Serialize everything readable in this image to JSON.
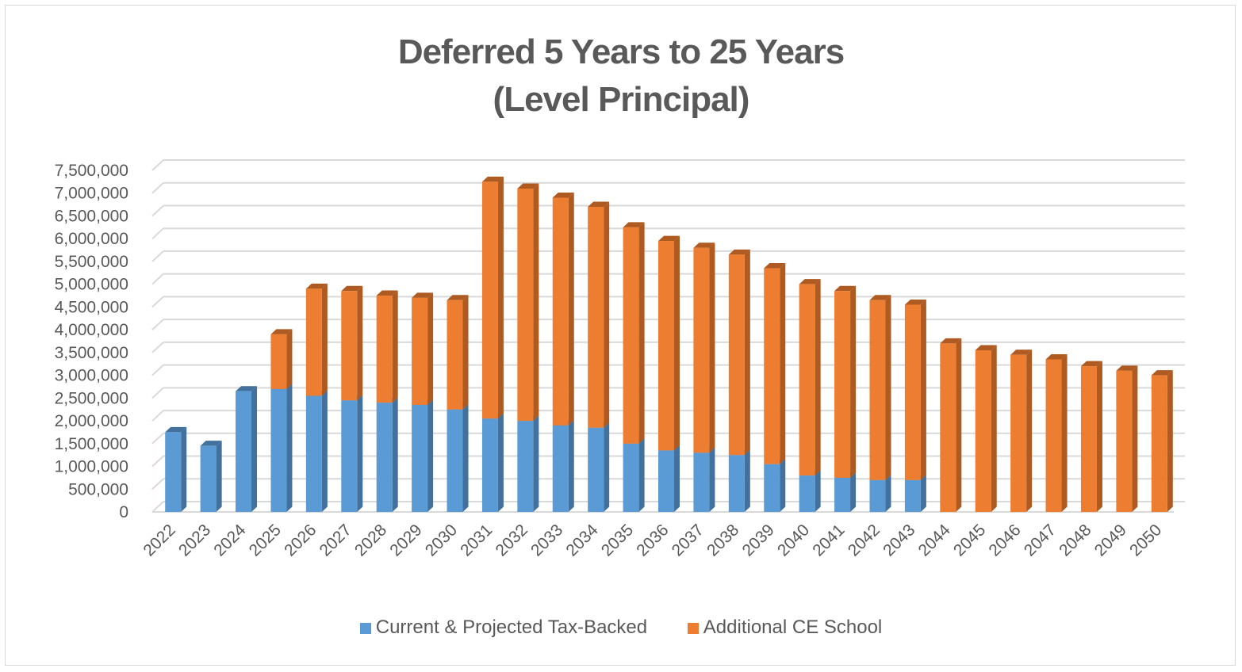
{
  "chart_data": {
    "type": "bar",
    "stacked": true,
    "title_line1": "Deferred 5 Years to 25 Years",
    "title_line2": "(Level Principal)",
    "xlabel": "",
    "ylabel": "",
    "ylim": [
      0,
      7500000
    ],
    "ytick_step": 500000,
    "ytick_labels": [
      "0",
      "500,000",
      "1,000,000",
      "1,500,000",
      "2,000,000",
      "2,500,000",
      "3,000,000",
      "3,500,000",
      "4,000,000",
      "4,500,000",
      "5,000,000",
      "5,500,000",
      "6,000,000",
      "6,500,000",
      "7,000,000",
      "7,500,000"
    ],
    "grid": true,
    "legend_position": "bottom",
    "categories": [
      "2022",
      "2023",
      "2024",
      "2025",
      "2026",
      "2027",
      "2028",
      "2029",
      "2030",
      "2031",
      "2032",
      "2033",
      "2034",
      "2035",
      "2036",
      "2037",
      "2038",
      "2039",
      "2040",
      "2041",
      "2042",
      "2043",
      "2044",
      "2045",
      "2046",
      "2047",
      "2048",
      "2049",
      "2050"
    ],
    "series": [
      {
        "name": "Current & Projected Tax-Backed",
        "color": "#5b9bd5",
        "side_color": "#41719c",
        "values": [
          1750000,
          1450000,
          2650000,
          2700000,
          2550000,
          2450000,
          2400000,
          2350000,
          2250000,
          2050000,
          2000000,
          1900000,
          1850000,
          1500000,
          1350000,
          1300000,
          1250000,
          1050000,
          800000,
          750000,
          700000,
          700000,
          0,
          0,
          0,
          0,
          0,
          0,
          0
        ]
      },
      {
        "name": "Additional CE School",
        "color": "#ed7d31",
        "side_color": "#ae5a21",
        "values": [
          0,
          0,
          0,
          1200000,
          2350000,
          2400000,
          2350000,
          2350000,
          2400000,
          5200000,
          5100000,
          5000000,
          4850000,
          4750000,
          4600000,
          4500000,
          4400000,
          4300000,
          4200000,
          4100000,
          3950000,
          3850000,
          3700000,
          3550000,
          3450000,
          3350000,
          3200000,
          3100000,
          3000000
        ]
      }
    ]
  }
}
